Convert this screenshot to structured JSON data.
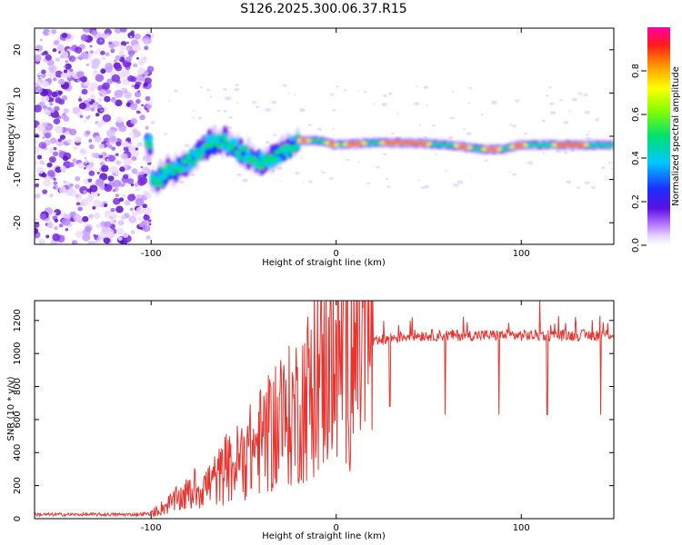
{
  "chart_data": [
    {
      "type": "heatmap",
      "title": "S126.2025.300.06.37.R15",
      "xlabel": "Height of straight line (km)",
      "ylabel": "Frequency (Hz)",
      "xlim": [
        -163,
        150
      ],
      "ylim": [
        -25,
        25
      ],
      "xticks": [
        -100,
        0,
        100
      ],
      "yticks": [
        -20,
        -10,
        0,
        10,
        20
      ],
      "colorbar": {
        "label": "Normalized spectral amplitude",
        "range": [
          0,
          1
        ],
        "ticks": [
          0.0,
          0.2,
          0.4,
          0.6,
          0.8
        ]
      },
      "ridge": [
        [
          -100,
          -11
        ],
        [
          -90,
          -8
        ],
        [
          -80,
          -6
        ],
        [
          -70,
          -2
        ],
        [
          -60,
          -1
        ],
        [
          -50,
          -4
        ],
        [
          -40,
          -6
        ],
        [
          -30,
          -4
        ],
        [
          -20,
          -1
        ],
        [
          -10,
          -1
        ],
        [
          0,
          -2
        ],
        [
          20,
          -1.5
        ],
        [
          40,
          -1.5
        ],
        [
          60,
          -2
        ],
        [
          70,
          -2.5
        ],
        [
          80,
          -3
        ],
        [
          90,
          -3
        ],
        [
          100,
          -2
        ],
        [
          120,
          -2
        ],
        [
          140,
          -2
        ],
        [
          150,
          -2
        ]
      ]
    },
    {
      "type": "line",
      "xlabel": "Height of straight line (km)",
      "ylabel": "SNR (10 * v/v)",
      "xlim": [
        -163,
        150
      ],
      "ylim": [
        0,
        1320
      ],
      "xticks": [
        -100,
        0,
        100
      ],
      "yticks": [
        0,
        200,
        400,
        600,
        800,
        1000,
        1200
      ],
      "series": [
        {
          "name": "SNR",
          "color": "#e8332e",
          "x": [
            -163,
            -150,
            -140,
            -130,
            -120,
            -110,
            -100,
            -95,
            -90,
            -85,
            -80,
            -75,
            -70,
            -65,
            -60,
            -55,
            -50,
            -45,
            -40,
            -35,
            -30,
            -25,
            -20,
            -15,
            -10,
            -5,
            0,
            5,
            10,
            15,
            20,
            25,
            30,
            35,
            40,
            50,
            60,
            70,
            80,
            90,
            100,
            110,
            120,
            130,
            140,
            150
          ],
          "values": [
            25,
            25,
            25,
            25,
            25,
            25,
            30,
            60,
            90,
            120,
            150,
            180,
            200,
            240,
            280,
            320,
            380,
            420,
            480,
            520,
            550,
            620,
            680,
            760,
            820,
            900,
            950,
            990,
            1020,
            1040,
            1060,
            1080,
            1095,
            1100,
            1110,
            1110,
            1110,
            1110,
            1110,
            1110,
            1110,
            1110,
            1110,
            1110,
            1110,
            1120
          ]
        }
      ],
      "dips": [
        {
          "x": 29,
          "value": 680
        },
        {
          "x": 59,
          "value": 630
        },
        {
          "x": 88,
          "value": 630
        },
        {
          "x": 114,
          "value": 630
        },
        {
          "x": 143,
          "value": 630
        }
      ],
      "peaks": [
        {
          "x": -4,
          "value": 1220
        },
        {
          "x": -30,
          "value": 960
        },
        {
          "x": 110,
          "value": 1320
        }
      ]
    }
  ],
  "colors": {
    "snr_line": "#e8332e",
    "axis": "#000000"
  }
}
